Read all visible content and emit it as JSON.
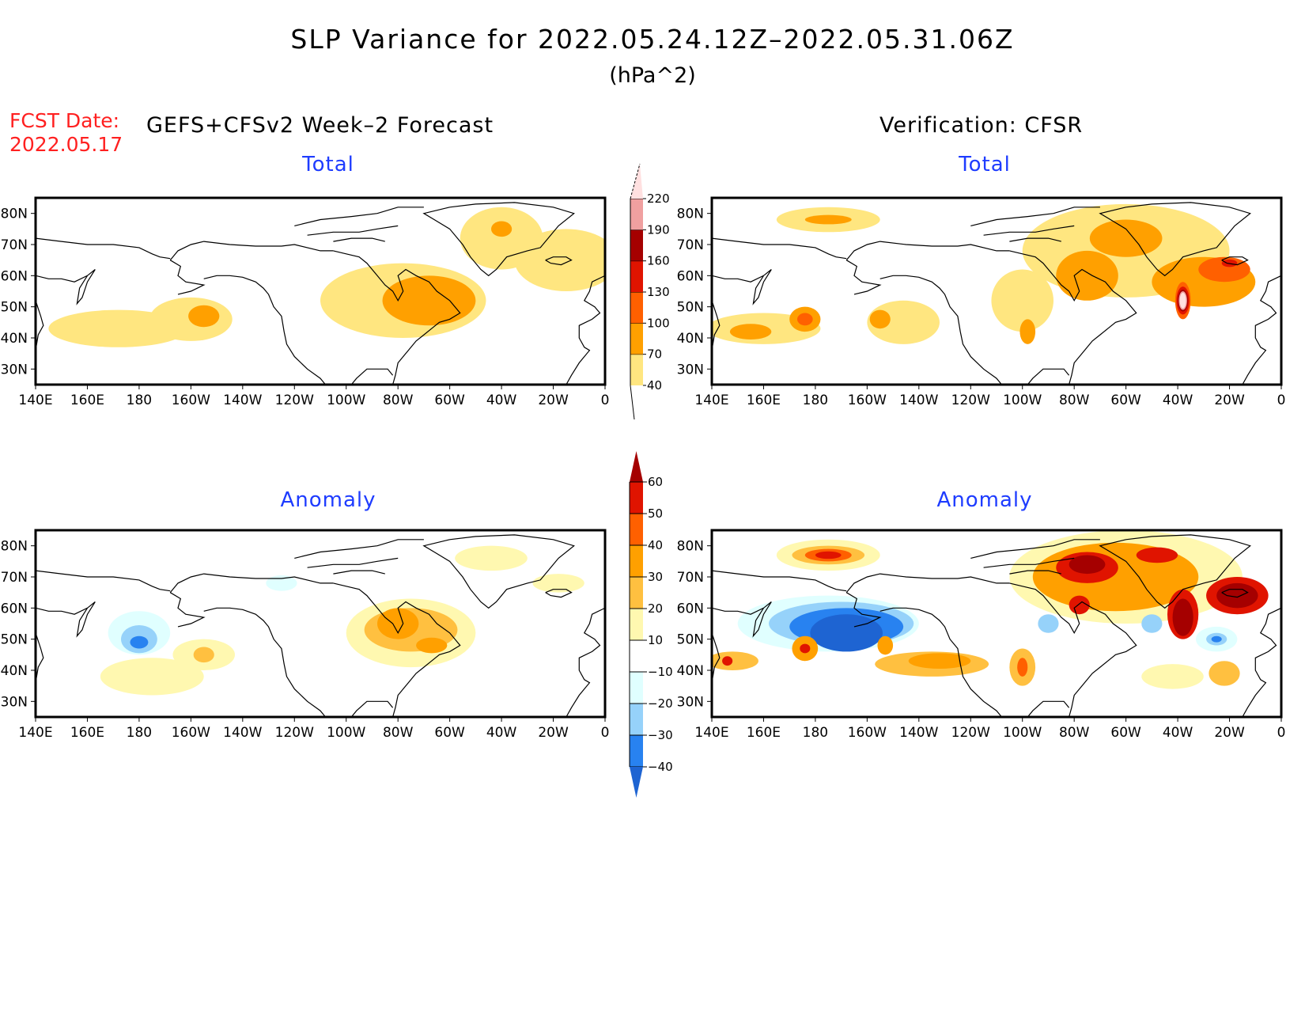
{
  "header": {
    "title": "SLP Variance for 2022.05.24.12Z–2022.05.31.06Z",
    "units": "(hPa^2)",
    "fcst_label": "FCST Date:",
    "fcst_date": "2022.05.17",
    "forecast_model": "GEFS+CFSv2 Week–2 Forecast",
    "verification": "Verification: CFSR"
  },
  "panels": [
    {
      "id": "forecast-total",
      "title": "Total"
    },
    {
      "id": "verification-total",
      "title": "Total"
    },
    {
      "id": "forecast-anomaly",
      "title": "Anomaly"
    },
    {
      "id": "verification-anomaly",
      "title": "Anomaly"
    }
  ],
  "chart_data": {
    "type": "heatmap",
    "title": "SLP Variance for 2022.05.24.12Z–2022.05.31.06Z (hPa^2)",
    "map_extent": {
      "lon": [
        140,
        360
      ],
      "lat": [
        25,
        85
      ]
    },
    "lon_ticks": [
      "140E",
      "160E",
      "180",
      "160W",
      "140W",
      "120W",
      "100W",
      "80W",
      "60W",
      "40W",
      "20W",
      "0"
    ],
    "lon_tick_values": [
      140,
      160,
      180,
      200,
      220,
      240,
      260,
      280,
      300,
      320,
      340,
      360
    ],
    "lat_ticks": [
      "80N",
      "70N",
      "60N",
      "50N",
      "40N",
      "30N"
    ],
    "lat_tick_values": [
      80,
      70,
      60,
      50,
      40,
      30
    ],
    "total_colorbar": {
      "levels": [
        "40",
        "70",
        "100",
        "130",
        "160",
        "190",
        "220"
      ],
      "colors": [
        "#ffe680",
        "#ffa000",
        "#ff6000",
        "#e01400",
        "#a50000",
        "#f0a0a0",
        "#ffe0e0"
      ],
      "open_ends": "both"
    },
    "anomaly_colorbar": {
      "levels": [
        "60",
        "50",
        "40",
        "30",
        "20",
        "10",
        "−10",
        "−20",
        "−30",
        "−40"
      ],
      "colors_top_to_bottom": [
        "#a50000",
        "#e01400",
        "#ff6000",
        "#ffa000",
        "#ffc040",
        "#fff8b0",
        "#ffffff",
        "#e0ffff",
        "#96d2fa",
        "#2882f0",
        "#1e64d2"
      ],
      "open_ends": "both"
    },
    "panels": [
      {
        "name": "forecast-total",
        "blobs": [
          {
            "lon": 172,
            "lat": 43,
            "rlon": 27,
            "rlat": 6,
            "level": 40
          },
          {
            "lon": 200,
            "lat": 46,
            "rlon": 16,
            "rlat": 7,
            "level": 40
          },
          {
            "lon": 205,
            "lat": 47,
            "rlon": 6,
            "rlat": 3.5,
            "level": 70
          },
          {
            "lon": 282,
            "lat": 52,
            "rlon": 32,
            "rlat": 12,
            "level": 40
          },
          {
            "lon": 320,
            "lat": 72,
            "rlon": 16,
            "rlat": 10,
            "level": 40
          },
          {
            "lon": 345,
            "lat": 65,
            "rlon": 20,
            "rlat": 10,
            "level": 40
          },
          {
            "lon": 292,
            "lat": 52,
            "rlon": 18,
            "rlat": 8,
            "level": 70
          },
          {
            "lon": 320,
            "lat": 75,
            "rlon": 4,
            "rlat": 2.5,
            "level": 70
          }
        ]
      },
      {
        "name": "verification-total",
        "blobs": [
          {
            "lon": 185,
            "lat": 78,
            "rlon": 20,
            "rlat": 4,
            "level": 40
          },
          {
            "lon": 185,
            "lat": 78,
            "rlon": 9,
            "rlat": 1.5,
            "level": 70
          },
          {
            "lon": 160,
            "lat": 43,
            "rlon": 22,
            "rlat": 5,
            "level": 40
          },
          {
            "lon": 155,
            "lat": 42,
            "rlon": 8,
            "rlat": 2.5,
            "level": 70
          },
          {
            "lon": 176,
            "lat": 46,
            "rlon": 6,
            "rlat": 4,
            "level": 70
          },
          {
            "lon": 176,
            "lat": 46,
            "rlon": 3,
            "rlat": 2,
            "level": 100
          },
          {
            "lon": 214,
            "lat": 45,
            "rlon": 14,
            "rlat": 7,
            "level": 40
          },
          {
            "lon": 205,
            "lat": 46,
            "rlon": 4,
            "rlat": 3,
            "level": 70
          },
          {
            "lon": 260,
            "lat": 52,
            "rlon": 12,
            "rlat": 10,
            "level": 40
          },
          {
            "lon": 262,
            "lat": 42,
            "rlon": 3,
            "rlat": 4,
            "level": 70
          },
          {
            "lon": 300,
            "lat": 68,
            "rlon": 40,
            "rlat": 15,
            "level": 40
          },
          {
            "lon": 285,
            "lat": 60,
            "rlon": 12,
            "rlat": 8,
            "level": 70
          },
          {
            "lon": 300,
            "lat": 72,
            "rlon": 14,
            "rlat": 6,
            "level": 70
          },
          {
            "lon": 330,
            "lat": 58,
            "rlon": 20,
            "rlat": 8,
            "level": 70
          },
          {
            "lon": 338,
            "lat": 62,
            "rlon": 10,
            "rlat": 4,
            "level": 100
          },
          {
            "lon": 322,
            "lat": 52,
            "rlon": 3,
            "rlat": 6,
            "level": 100
          },
          {
            "lon": 322,
            "lat": 52,
            "rlon": 2.5,
            "rlat": 4.5,
            "level": 130
          },
          {
            "lon": 322,
            "lat": 52,
            "rlon": 2,
            "rlat": 3.5,
            "level": 160
          },
          {
            "lon": 322,
            "lat": 52,
            "rlon": 1.6,
            "rlat": 3,
            "level": 190
          },
          {
            "lon": 322,
            "lat": 52,
            "rlon": 1.2,
            "rlat": 2.5,
            "level": 220
          },
          {
            "lon": 340,
            "lat": 64,
            "rlon": 3,
            "rlat": 1.2,
            "level": 130
          }
        ]
      },
      {
        "name": "forecast-anomaly",
        "blobs": [
          {
            "lon": 180,
            "lat": 52,
            "rlon": 12,
            "rlat": 7,
            "level": -10
          },
          {
            "lon": 180,
            "lat": 50,
            "rlon": 7,
            "rlat": 4.5,
            "level": -20
          },
          {
            "lon": 180,
            "lat": 49,
            "rlon": 3.5,
            "rlat": 2,
            "level": -30
          },
          {
            "lon": 235,
            "lat": 68,
            "rlon": 6,
            "rlat": 2.5,
            "level": -10
          },
          {
            "lon": 185,
            "lat": 38,
            "rlon": 20,
            "rlat": 6,
            "level": 10
          },
          {
            "lon": 205,
            "lat": 45,
            "rlon": 12,
            "rlat": 5,
            "level": 10
          },
          {
            "lon": 205,
            "lat": 45,
            "rlon": 4,
            "rlat": 2.5,
            "level": 20
          },
          {
            "lon": 285,
            "lat": 52,
            "rlon": 25,
            "rlat": 11,
            "level": 10
          },
          {
            "lon": 285,
            "lat": 53,
            "rlon": 18,
            "rlat": 7,
            "level": 20
          },
          {
            "lon": 280,
            "lat": 55,
            "rlon": 8,
            "rlat": 5,
            "level": 30
          },
          {
            "lon": 293,
            "lat": 48,
            "rlon": 6,
            "rlat": 2.5,
            "level": 30
          },
          {
            "lon": 316,
            "lat": 76,
            "rlon": 14,
            "rlat": 4,
            "level": 10
          },
          {
            "lon": 342,
            "lat": 68,
            "rlon": 10,
            "rlat": 3,
            "level": 10
          }
        ]
      },
      {
        "name": "verification-anomaly",
        "blobs": [
          {
            "lon": 185,
            "lat": 77,
            "rlon": 20,
            "rlat": 5,
            "level": 10
          },
          {
            "lon": 185,
            "lat": 77,
            "rlon": 14,
            "rlat": 3,
            "level": 20
          },
          {
            "lon": 185,
            "lat": 77,
            "rlon": 9,
            "rlat": 2,
            "level": 40
          },
          {
            "lon": 185,
            "lat": 77,
            "rlon": 5,
            "rlat": 1.2,
            "level": 50
          },
          {
            "lon": 185,
            "lat": 55,
            "rlon": 35,
            "rlat": 9,
            "level": -10
          },
          {
            "lon": 190,
            "lat": 55,
            "rlon": 28,
            "rlat": 7,
            "level": -20
          },
          {
            "lon": 192,
            "lat": 54,
            "rlon": 22,
            "rlat": 6,
            "level": -30
          },
          {
            "lon": 192,
            "lat": 52,
            "rlon": 14,
            "rlat": 6,
            "level": -40
          },
          {
            "lon": 176,
            "lat": 47,
            "rlon": 5,
            "rlat": 4,
            "level": 30
          },
          {
            "lon": 176,
            "lat": 47,
            "rlon": 2,
            "rlat": 1.5,
            "level": 50
          },
          {
            "lon": 207,
            "lat": 48,
            "rlon": 3,
            "rlat": 3,
            "level": 30
          },
          {
            "lon": 148,
            "lat": 43,
            "rlon": 10,
            "rlat": 3,
            "level": 20
          },
          {
            "lon": 146,
            "lat": 43,
            "rlon": 2,
            "rlat": 1.5,
            "level": 50
          },
          {
            "lon": 225,
            "lat": 42,
            "rlon": 22,
            "rlat": 4,
            "level": 20
          },
          {
            "lon": 228,
            "lat": 43,
            "rlon": 12,
            "rlat": 2.5,
            "level": 30
          },
          {
            "lon": 260,
            "lat": 41,
            "rlon": 5,
            "rlat": 6,
            "level": 20
          },
          {
            "lon": 260,
            "lat": 41,
            "rlon": 2,
            "rlat": 3,
            "level": 40
          },
          {
            "lon": 300,
            "lat": 70,
            "rlon": 45,
            "rlat": 15,
            "level": 10
          },
          {
            "lon": 296,
            "lat": 70,
            "rlon": 32,
            "rlat": 11,
            "level": 30
          },
          {
            "lon": 285,
            "lat": 73,
            "rlon": 12,
            "rlat": 5,
            "level": 50
          },
          {
            "lon": 285,
            "lat": 74,
            "rlon": 7,
            "rlat": 3,
            "level": 60
          },
          {
            "lon": 282,
            "lat": 61,
            "rlon": 4,
            "rlat": 3,
            "level": 50
          },
          {
            "lon": 322,
            "lat": 58,
            "rlon": 6,
            "rlat": 8,
            "level": 50
          },
          {
            "lon": 322,
            "lat": 57,
            "rlon": 4,
            "rlat": 6,
            "level": 60
          },
          {
            "lon": 343,
            "lat": 64,
            "rlon": 12,
            "rlat": 6,
            "level": 50
          },
          {
            "lon": 343,
            "lat": 64,
            "rlon": 8,
            "rlat": 4,
            "level": 60
          },
          {
            "lon": 312,
            "lat": 77,
            "rlon": 8,
            "rlat": 2.5,
            "level": 50
          },
          {
            "lon": 335,
            "lat": 50,
            "rlon": 8,
            "rlat": 4,
            "level": -10
          },
          {
            "lon": 335,
            "lat": 50,
            "rlon": 4,
            "rlat": 2,
            "level": -20
          },
          {
            "lon": 335,
            "lat": 50,
            "rlon": 2,
            "rlat": 1,
            "level": -30
          },
          {
            "lon": 310,
            "lat": 55,
            "rlon": 4,
            "rlat": 3,
            "level": -20
          },
          {
            "lon": 270,
            "lat": 55,
            "rlon": 4,
            "rlat": 3,
            "level": -20
          },
          {
            "lon": 338,
            "lat": 39,
            "rlon": 6,
            "rlat": 4,
            "level": 20
          },
          {
            "lon": 318,
            "lat": 38,
            "rlon": 12,
            "rlat": 4,
            "level": 10
          }
        ]
      }
    ]
  }
}
